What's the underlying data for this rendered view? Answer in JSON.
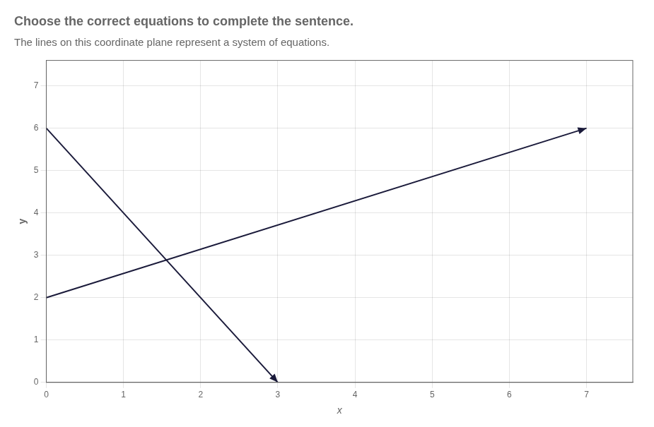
{
  "chart_data": {
    "type": "line",
    "title": "Choose the correct equations to complete the sentence.",
    "subtitle": "The lines on this coordinate plane represent a system of equations.",
    "xlabel": "x",
    "ylabel": "y",
    "series": [
      {
        "x": [
          0,
          3
        ],
        "values": [
          6,
          0
        ],
        "color": "#1a1a3a",
        "marker": "arrow"
      },
      {
        "x": [
          0,
          7
        ],
        "values": [
          2,
          6
        ],
        "color": "#1a1a3a",
        "marker": "arrow"
      }
    ],
    "xlim": [
      0,
      7.6
    ],
    "ylim": [
      0,
      7.6
    ],
    "xticks": [
      0,
      1,
      2,
      3,
      4,
      5,
      6,
      7
    ],
    "yticks": [
      0,
      1,
      2,
      3,
      4,
      5,
      6,
      7
    ],
    "grid": true
  }
}
